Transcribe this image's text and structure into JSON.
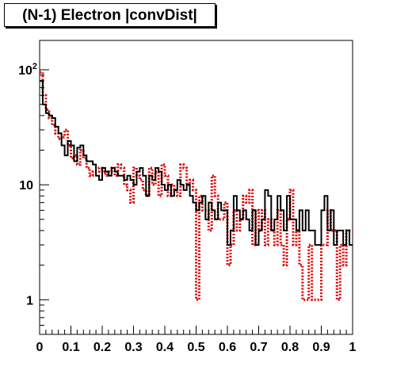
{
  "chart_data": {
    "type": "line",
    "title": "(N-1) Electron |convDist|",
    "xlabel": "",
    "ylabel": "",
    "xlim": [
      0,
      1
    ],
    "ylim": [
      0.5,
      180
    ],
    "yscale": "log",
    "grid": false,
    "legend": "none",
    "x_tick_labels": [
      "0",
      "0.1",
      "0.2",
      "0.3",
      "0.4",
      "0.5",
      "0.6",
      "0.7",
      "0.8",
      "0.9",
      "1"
    ],
    "y_tick_labels": [
      {
        "value": 1,
        "base": "1",
        "exp": ""
      },
      {
        "value": 10,
        "base": "10",
        "exp": ""
      },
      {
        "value": 100,
        "base": "10",
        "exp": "2"
      }
    ],
    "bin_width": 0.01,
    "series": [
      {
        "style": "solid",
        "color": "#000000",
        "values": [
          80,
          50,
          42,
          40,
          38,
          32,
          28,
          22,
          18,
          24,
          22,
          16,
          21,
          22,
          18,
          16,
          16,
          15,
          12,
          11,
          14,
          13,
          12,
          14,
          13,
          12,
          12,
          11,
          12,
          11,
          10,
          13,
          14,
          12,
          8,
          12,
          11,
          14,
          13,
          10,
          9,
          10,
          8,
          9,
          11,
          10,
          9,
          10,
          8,
          7,
          6,
          7,
          8,
          5,
          7,
          6,
          5,
          7,
          6,
          6,
          3,
          4,
          8,
          6,
          5,
          6,
          5,
          4,
          6,
          3,
          4,
          5,
          9,
          8,
          4,
          5,
          8,
          6,
          4,
          8,
          5,
          5,
          4,
          6,
          4,
          6,
          4,
          4,
          3,
          3,
          6,
          8,
          4,
          6,
          3,
          4,
          4,
          3,
          4,
          3
        ]
      },
      {
        "style": "dotted",
        "color": "#dd0000",
        "values": [
          95,
          60,
          45,
          38,
          33,
          28,
          25,
          26,
          30,
          22,
          17,
          18,
          15,
          20,
          17,
          14,
          12,
          13,
          13,
          14,
          13,
          12,
          13,
          14,
          12,
          15,
          14,
          10,
          9,
          7,
          14,
          12,
          11,
          9,
          8,
          14,
          10,
          13,
          8,
          15,
          12,
          8,
          10,
          9,
          8,
          15,
          14,
          10,
          11,
          9,
          1,
          8,
          6,
          6,
          4,
          12,
          8,
          5,
          5,
          7,
          2,
          3,
          6,
          4,
          5,
          8,
          7,
          9,
          3,
          6,
          4,
          6,
          3,
          5,
          4,
          3,
          6,
          3,
          2,
          5,
          9,
          3,
          4,
          2,
          1,
          1,
          3,
          1,
          1,
          1,
          3,
          3,
          6,
          4,
          4,
          1,
          3,
          2,
          4,
          4
        ]
      }
    ]
  }
}
